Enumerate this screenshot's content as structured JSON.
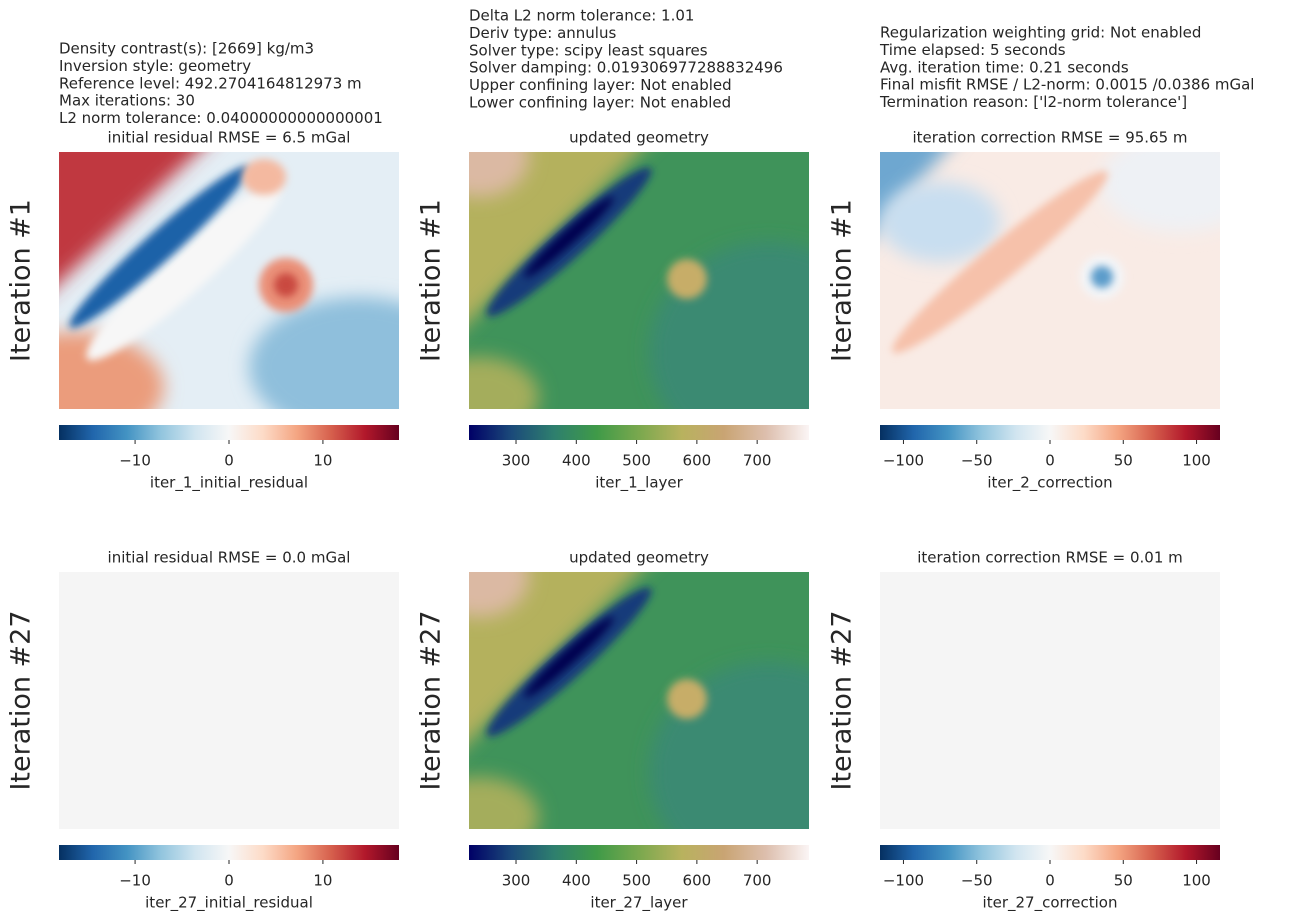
{
  "chart_data": [
    {
      "type": "heatmap",
      "title": "initial residual RMSE = 6.5 mGal",
      "ylabel": "Iteration #1",
      "annotations": [
        "Density contrast(s): [2669] kg/m3",
        "Inversion style: geometry",
        "Reference level: 492.2704164812973 m",
        "Max iterations: 30",
        "L2 norm tolerance: 0.04000000000000001"
      ],
      "colorbar": {
        "label": "iter_1_initial_residual",
        "lim": [
          -18.1,
          18.1
        ],
        "ticks": [
          {
            "value": -10,
            "label": "−10"
          },
          0,
          10
        ],
        "colors": [
          "#053061",
          "#2166ac",
          "#4393c3",
          "#92c5de",
          "#d1e5f0",
          "#f7f7f7",
          "#fddbc7",
          "#f4a582",
          "#d6604d",
          "#b2182b",
          "#67001f"
        ]
      }
    },
    {
      "type": "heatmap",
      "title": "updated geometry",
      "ylabel": "Iteration #1",
      "annotations": [
        "Delta L2 norm tolerance: 1.01",
        "Deriv type: annulus",
        "Solver type: scipy least squares",
        "Solver damping: 0.019306977288832496",
        "Upper confining layer: Not enabled",
        "Lower confining layer: Not enabled"
      ],
      "colorbar": {
        "label": "iter_1_layer",
        "lim": [
          222,
          786
        ],
        "ticks": [
          300,
          400,
          500,
          600,
          700
        ],
        "colors": [
          "#000066",
          "#1b4a7a",
          "#2e7f6e",
          "#3f9a48",
          "#7aa84e",
          "#b8b25e",
          "#c9a473",
          "#ddbfae",
          "#fbf5f5"
        ]
      }
    },
    {
      "type": "heatmap",
      "title": "iteration correction RMSE = 95.65 m",
      "ylabel": "Iteration #1",
      "annotations": [
        "Regularization weighting grid: Not enabled",
        "Time elapsed: 5 seconds",
        "Avg. iteration time: 0.21 seconds",
        "Final misfit RMSE / L2-norm: 0.0015 /0.0386 mGal",
        "Termination reason: ['l2-norm tolerance']"
      ],
      "colorbar": {
        "label": "iter_2_correction",
        "lim": [
          -116,
          116
        ],
        "ticks": [
          {
            "value": -100,
            "label": "−100"
          },
          {
            "value": -50,
            "label": "−50"
          },
          0,
          50,
          100
        ],
        "colors": [
          "#053061",
          "#2166ac",
          "#4393c3",
          "#92c5de",
          "#d1e5f0",
          "#f7f7f7",
          "#fddbc7",
          "#f4a582",
          "#d6604d",
          "#b2182b",
          "#67001f"
        ]
      }
    },
    {
      "type": "heatmap",
      "title": "initial residual RMSE = 0.0 mGal",
      "ylabel": "Iteration #27",
      "colorbar": {
        "label": "iter_27_initial_residual",
        "lim": [
          -18.1,
          18.1
        ],
        "ticks": [
          {
            "value": -10,
            "label": "−10"
          },
          0,
          10
        ],
        "colors": [
          "#053061",
          "#2166ac",
          "#4393c3",
          "#92c5de",
          "#d1e5f0",
          "#f7f7f7",
          "#fddbc7",
          "#f4a582",
          "#d6604d",
          "#b2182b",
          "#67001f"
        ]
      }
    },
    {
      "type": "heatmap",
      "title": "updated geometry",
      "ylabel": "Iteration #27",
      "colorbar": {
        "label": "iter_27_layer",
        "lim": [
          222,
          786
        ],
        "ticks": [
          300,
          400,
          500,
          600,
          700
        ],
        "colors": [
          "#000066",
          "#1b4a7a",
          "#2e7f6e",
          "#3f9a48",
          "#7aa84e",
          "#b8b25e",
          "#c9a473",
          "#ddbfae",
          "#fbf5f5"
        ]
      }
    },
    {
      "type": "heatmap",
      "title": "iteration correction RMSE = 0.01 m",
      "ylabel": "Iteration #27",
      "colorbar": {
        "label": "iter_27_correction",
        "lim": [
          -116,
          116
        ],
        "ticks": [
          {
            "value": -100,
            "label": "−100"
          },
          {
            "value": -50,
            "label": "−50"
          },
          0,
          50,
          100
        ],
        "colors": [
          "#053061",
          "#2166ac",
          "#4393c3",
          "#92c5de",
          "#d1e5f0",
          "#f7f7f7",
          "#fddbc7",
          "#f4a582",
          "#d6604d",
          "#b2182b",
          "#67001f"
        ]
      }
    }
  ]
}
